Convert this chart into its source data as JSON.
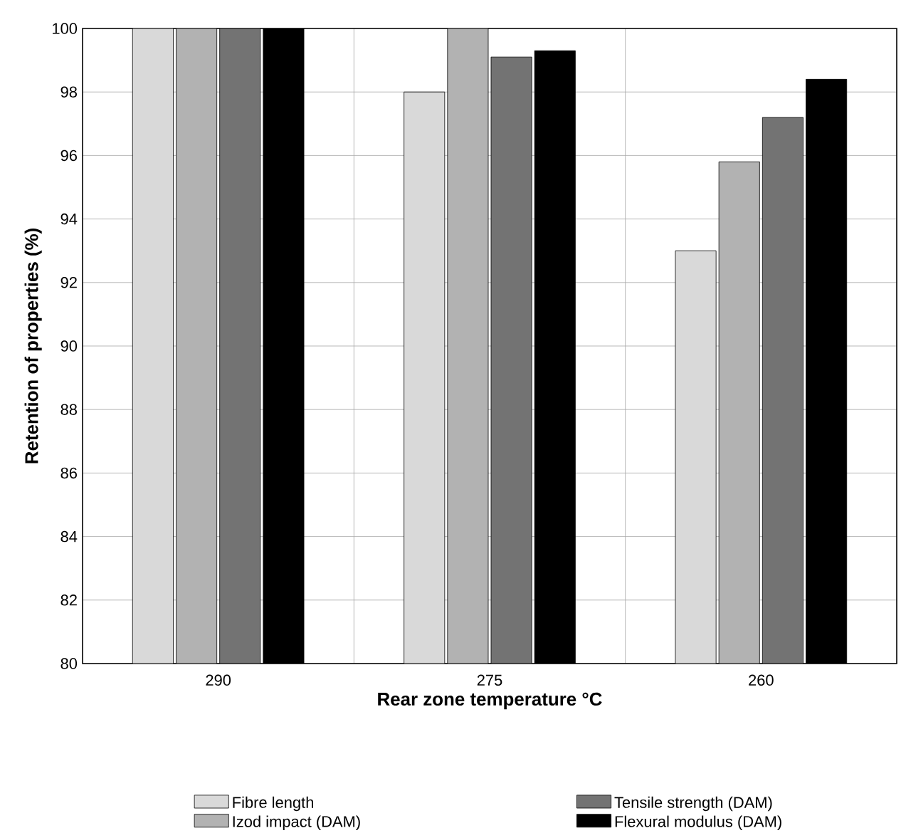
{
  "chart_data": {
    "type": "bar",
    "xlabel": "Rear zone temperature °C",
    "ylabel": "Retention of properties (%)",
    "categories": [
      "290",
      "275",
      "260"
    ],
    "series": [
      {
        "name": "Fibre length",
        "color": "#d9d9d9",
        "values": [
          100,
          98.0,
          93.0
        ]
      },
      {
        "name": "Izod impact (DAM)",
        "color": "#b2b2b2",
        "values": [
          100,
          100,
          95.8
        ]
      },
      {
        "name": "Tensile strength (DAM)",
        "color": "#737373",
        "values": [
          100,
          99.1,
          97.2
        ]
      },
      {
        "name": "Flexural modulus (DAM)",
        "color": "#000000",
        "values": [
          100,
          99.3,
          98.4
        ]
      }
    ],
    "ylim": [
      80,
      100
    ],
    "yticks": [
      80,
      82,
      84,
      86,
      88,
      90,
      92,
      94,
      96,
      98,
      100
    ],
    "grid": true,
    "legend": "bottom"
  }
}
